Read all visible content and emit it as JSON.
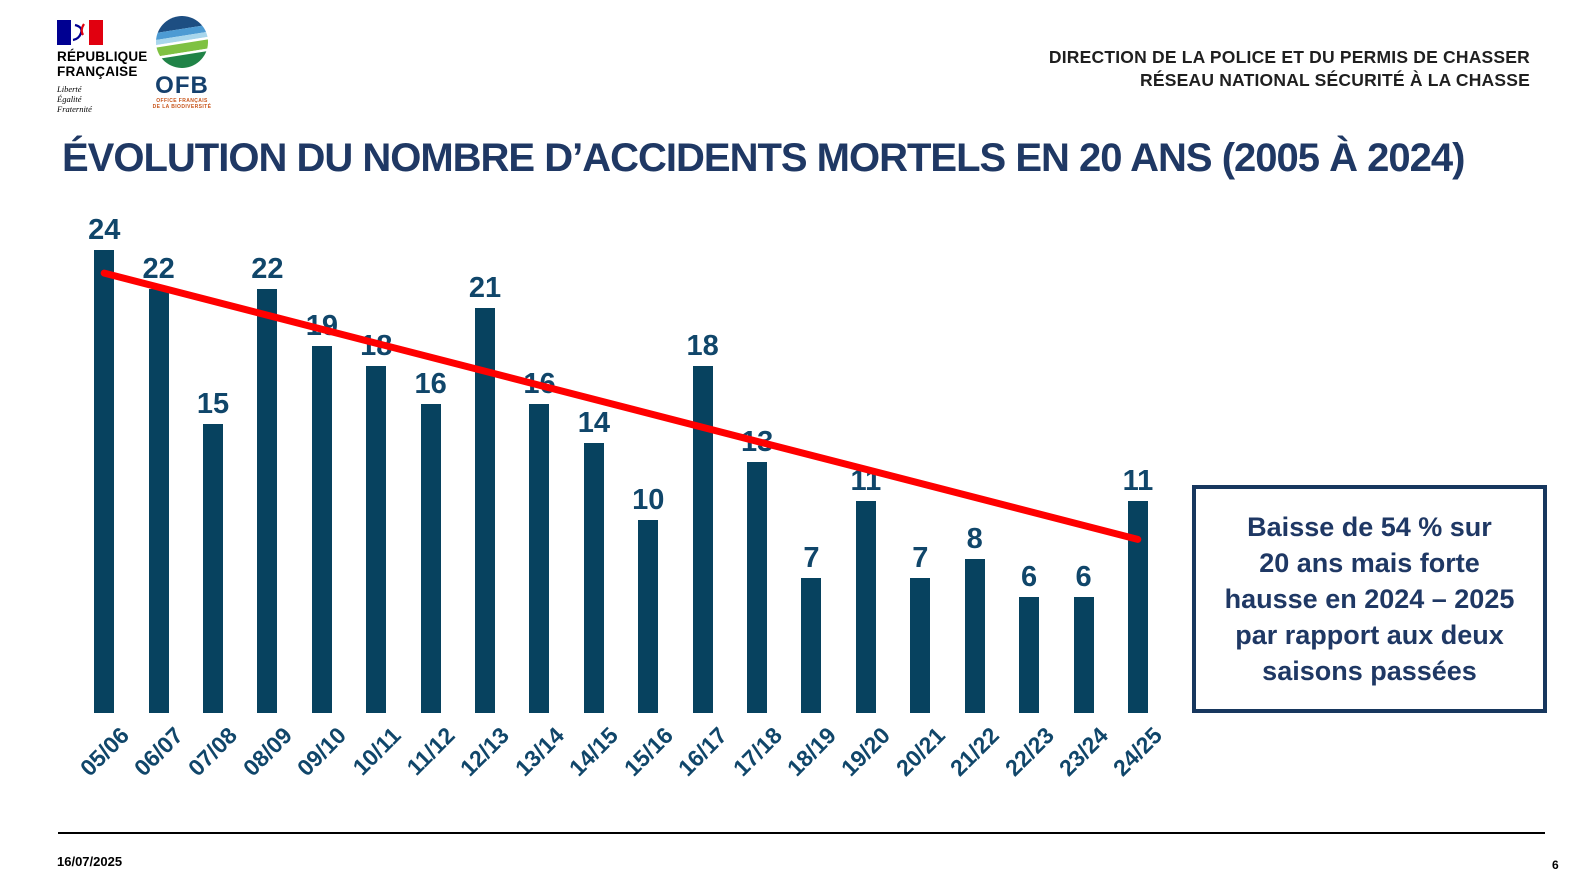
{
  "header": {
    "rf_logo": {
      "name_line1": "RÉPUBLIQUE",
      "name_line2": "FRANÇAISE",
      "motto_line1": "Liberté",
      "motto_line2": "Égalité",
      "motto_line3": "Fraternité",
      "flag_blue": "#000091",
      "flag_red": "#e1000f"
    },
    "ofb_logo": {
      "acronym": "OFB",
      "subtitle_line1": "OFFICE FRANÇAIS",
      "subtitle_line2": "DE LA BIODIVERSITÉ"
    },
    "right_line1": "DIRECTION DE LA POLICE ET DU PERMIS DE CHASSER",
    "right_line2": "RÉSEAU NATIONAL SÉCURITÉ À LA CHASSE"
  },
  "title": "ÉVOLUTION DU NOMBRE D’ACCIDENTS MORTELS EN 20 ANS (2005 À 2024)",
  "chart_data": {
    "type": "bar",
    "title": "ÉVOLUTION DU NOMBRE D’ACCIDENTS MORTELS EN 20 ANS (2005 À 2024)",
    "categories": [
      "05/06",
      "06/07",
      "07/08",
      "08/09",
      "09/10",
      "10/11",
      "11/12",
      "12/13",
      "13/14",
      "14/15",
      "15/16",
      "16/17",
      "17/18",
      "18/19",
      "19/20",
      "20/21",
      "21/22",
      "22/23",
      "23/24",
      "24/25"
    ],
    "values": [
      24,
      22,
      15,
      22,
      19,
      18,
      16,
      21,
      16,
      14,
      10,
      18,
      13,
      7,
      11,
      7,
      8,
      6,
      6,
      11
    ],
    "xlabel": "",
    "ylabel": "",
    "ylim": [
      0,
      24
    ],
    "grid": false,
    "legend": false,
    "data_labels": true,
    "bar_color": "#07425f",
    "label_color": "#10466a",
    "trendline": {
      "start_value": 22.8,
      "end_value": 9.0,
      "color": "#ff0000",
      "width": 7
    }
  },
  "callout": {
    "lines": [
      "Baisse de 54 % sur",
      "20 ans mais forte",
      "hausse en 2024 – 2025",
      "par rapport aux deux",
      "saisons passées"
    ],
    "border_color": "#17375e",
    "text_color": "#1f3864"
  },
  "footer": {
    "date": "16/07/2025",
    "page": "6"
  }
}
